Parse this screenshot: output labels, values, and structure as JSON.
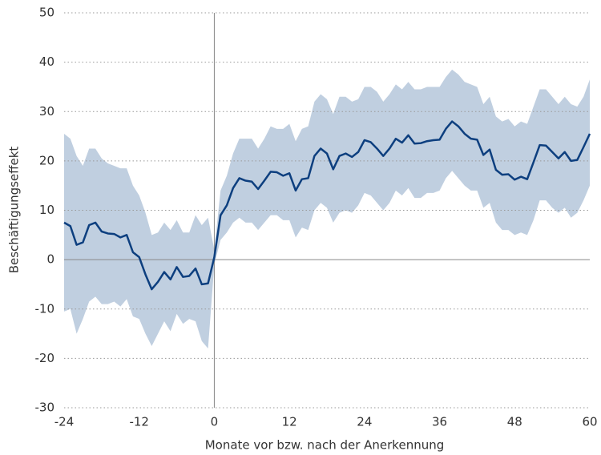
{
  "chart_data": {
    "type": "line",
    "xlabel": "Monate vor bzw. nach der Anerkennung",
    "ylabel": "Beschäftigungseffekt",
    "x": [
      -24,
      -23,
      -22,
      -21,
      -20,
      -19,
      -18,
      -17,
      -16,
      -15,
      -14,
      -13,
      -12,
      -11,
      -10,
      -9,
      -8,
      -7,
      -6,
      -5,
      -4,
      -3,
      -2,
      -1,
      0,
      1,
      2,
      3,
      4,
      5,
      6,
      7,
      8,
      9,
      10,
      11,
      12,
      13,
      14,
      15,
      16,
      17,
      18,
      19,
      20,
      21,
      22,
      23,
      24,
      25,
      26,
      27,
      28,
      29,
      30,
      31,
      32,
      33,
      34,
      35,
      36,
      37,
      38,
      39,
      40,
      41,
      42,
      43,
      44,
      45,
      46,
      47,
      48,
      49,
      50,
      51,
      52,
      53,
      54,
      55,
      56,
      57,
      58,
      59,
      60
    ],
    "series": [
      {
        "color": "#0d3f7f",
        "values": [
          7.5,
          6.8,
          3.0,
          3.5,
          7.0,
          7.5,
          5.7,
          5.3,
          5.2,
          4.5,
          5.0,
          1.5,
          0.5,
          -3,
          -6,
          -4.5,
          -2.5,
          -4,
          -1.5,
          -3.5,
          -3.3,
          -1.8,
          -5,
          -4.8,
          0.5,
          9,
          11,
          14.5,
          16.5,
          16,
          15.8,
          14.3,
          16,
          17.8,
          17.7,
          17,
          17.5,
          14,
          16.3,
          16.5,
          21,
          22.5,
          21.5,
          18.3,
          21,
          21.5,
          20.8,
          21.8,
          24.2,
          23.8,
          22.5,
          21,
          22.5,
          24.5,
          23.7,
          25.2,
          23.5,
          23.6,
          24,
          24.2,
          24.3,
          26.5,
          28,
          27,
          25.5,
          24.5,
          24.3,
          21.2,
          22.3,
          18.2,
          17.2,
          17.3,
          16.2,
          16.8,
          16.3,
          19.7,
          23.2,
          23.1,
          21.8,
          20.5,
          21.8,
          20,
          20.2,
          22.8,
          25.5
        ]
      }
    ],
    "band": {
      "color": "#c0cfe0",
      "upper": [
        25.5,
        24.5,
        21,
        19,
        22.5,
        22.5,
        20.5,
        19.5,
        19,
        18.5,
        18.5,
        15,
        13,
        9.5,
        5,
        5.5,
        7.5,
        6,
        8,
        5.5,
        5.5,
        9,
        7,
        8.5,
        2,
        14,
        17,
        21.5,
        24.5,
        24.5,
        24.5,
        22.5,
        24.5,
        27,
        26.5,
        26.5,
        27.5,
        24,
        26.5,
        27,
        32,
        33.5,
        32.5,
        29.5,
        33,
        33,
        32,
        32.5,
        35,
        35,
        34,
        32,
        33.5,
        35.5,
        34.5,
        36,
        34.5,
        34.5,
        35,
        35,
        35,
        37,
        38.5,
        37.5,
        36,
        35.5,
        35,
        31.5,
        33,
        29,
        28,
        28.5,
        27,
        28,
        27.5,
        31,
        34.5,
        34.5,
        33,
        31.5,
        33,
        31.5,
        31,
        33,
        36.5
      ],
      "lower": [
        -10.5,
        -10,
        -15,
        -12,
        -8.5,
        -7.5,
        -9,
        -9,
        -8.5,
        -9.5,
        -8,
        -11.5,
        -12,
        -15,
        -17.5,
        -15,
        -12.5,
        -14.5,
        -11,
        -13,
        -12,
        -12.5,
        -16.5,
        -18,
        -1,
        4,
        5.5,
        7.5,
        8.5,
        7.5,
        7.5,
        6,
        7.5,
        9,
        9,
        8,
        8,
        4.5,
        6.5,
        6,
        10,
        11.5,
        10.5,
        7.5,
        9.5,
        10,
        9.5,
        11,
        13.5,
        13,
        11.5,
        10,
        11.5,
        14,
        13,
        14.5,
        12.5,
        12.5,
        13.5,
        13.5,
        14,
        16.5,
        18,
        16.5,
        15,
        14,
        14,
        10.5,
        11.5,
        7.5,
        6,
        6,
        5,
        5.5,
        5,
        8,
        12,
        12,
        10.5,
        9.5,
        10.5,
        8.5,
        9.5,
        12,
        15
      ]
    },
    "xlim": [
      -24,
      60
    ],
    "xticks": [
      -24,
      -12,
      0,
      12,
      24,
      36,
      48,
      60
    ],
    "ylim": [
      -30,
      50
    ],
    "yticks": [
      -30,
      -20,
      -10,
      0,
      10,
      20,
      30,
      40,
      50
    ],
    "grid": true
  }
}
